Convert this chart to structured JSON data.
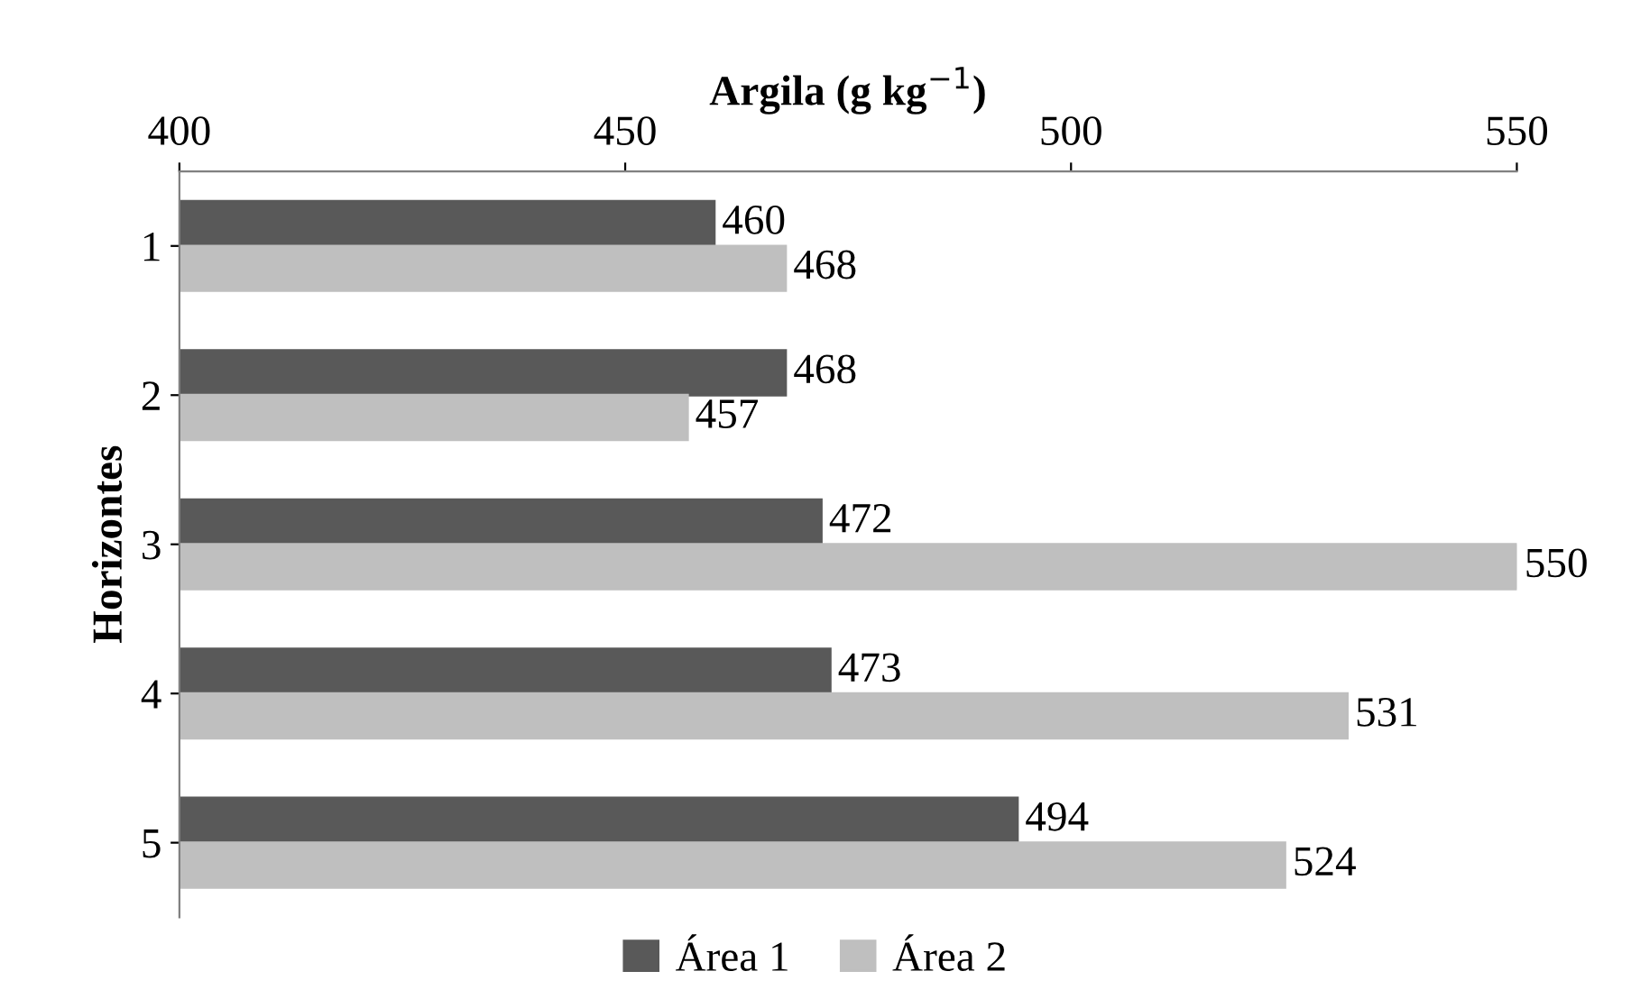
{
  "chart_data": {
    "type": "bar",
    "orientation": "horizontal",
    "xlabel": "Argila (g kg$^{−1}$)",
    "ylabel": "Horizontes",
    "categories": [
      "1",
      "2",
      "3",
      "4",
      "5"
    ],
    "series": [
      {
        "name": "Área 1",
        "color": "#595959",
        "values": [
          460,
          468,
          472,
          473,
          494
        ]
      },
      {
        "name": "Área 2",
        "color": "#bfbfbf",
        "values": [
          468,
          457,
          550,
          531,
          524
        ]
      }
    ],
    "xlim": [
      400,
      550
    ],
    "xticks": [
      400,
      450,
      500,
      550
    ],
    "data_labels": true,
    "grid": false,
    "legend": "bottom"
  }
}
